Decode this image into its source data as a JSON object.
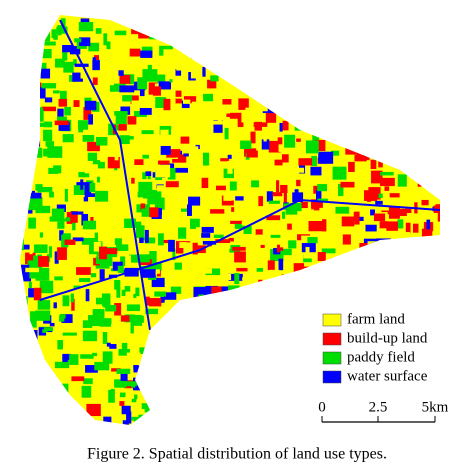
{
  "map": {
    "legend": [
      {
        "label": "farm land",
        "color": "#ffff00"
      },
      {
        "label": "build-up land",
        "color": "#ff0000"
      },
      {
        "label": "paddy field",
        "color": "#00dd00"
      },
      {
        "label": "water surface",
        "color": "#0000ff"
      }
    ],
    "scale_labels": [
      "0",
      "2.5",
      "5km"
    ],
    "caption": "Figure 2. Spatial distribution of land use types."
  }
}
